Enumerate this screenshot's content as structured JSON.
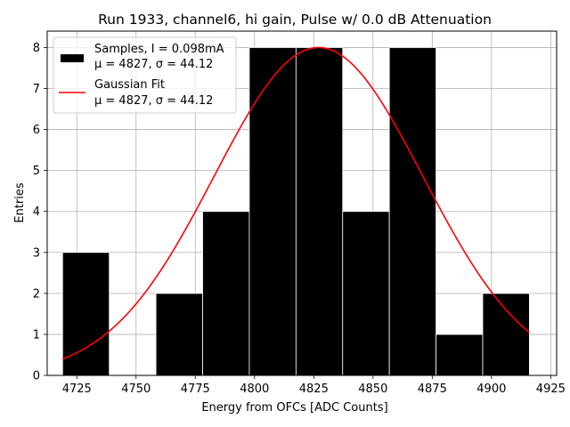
{
  "chart_data": {
    "type": "bar",
    "title": "Run 1933, channel6, hi gain, Pulse w/ 0.0 dB Attenuation",
    "xlabel": "Energy from OFCs [ADC Counts]",
    "ylabel": "Entries",
    "xlim": [
      4712.5,
      4927.5
    ],
    "ylim": [
      0,
      8.4
    ],
    "xticks": [
      4725,
      4750,
      4775,
      4800,
      4825,
      4850,
      4875,
      4900,
      4925
    ],
    "yticks": [
      0,
      1,
      2,
      3,
      4,
      5,
      6,
      7,
      8
    ],
    "grid": true,
    "legend_position": "top-left",
    "bins": [
      {
        "x0": 4719,
        "x1": 4738.7,
        "count": 3
      },
      {
        "x0": 4738.7,
        "x1": 4758.4,
        "count": 0
      },
      {
        "x0": 4758.4,
        "x1": 4778.1,
        "count": 2
      },
      {
        "x0": 4778.1,
        "x1": 4797.8,
        "count": 4
      },
      {
        "x0": 4797.8,
        "x1": 4817.5,
        "count": 8
      },
      {
        "x0": 4817.5,
        "x1": 4837.2,
        "count": 8
      },
      {
        "x0": 4837.2,
        "x1": 4856.9,
        "count": 4
      },
      {
        "x0": 4856.9,
        "x1": 4876.6,
        "count": 8
      },
      {
        "x0": 4876.6,
        "x1": 4896.3,
        "count": 1
      },
      {
        "x0": 4896.3,
        "x1": 4916,
        "count": 2
      }
    ],
    "series": [
      {
        "name": "Samples, I = 0.098mA",
        "stats": "μ = 4827, σ = 44.12",
        "kind": "histogram",
        "color": "#000000"
      },
      {
        "name": "Gaussian Fit",
        "stats": "μ = 4827, σ = 44.12",
        "kind": "line",
        "color": "#ff0000",
        "mu": 4827,
        "sigma": 44.12,
        "amplitude": 8,
        "x_range": [
          4719,
          4916
        ]
      }
    ]
  }
}
